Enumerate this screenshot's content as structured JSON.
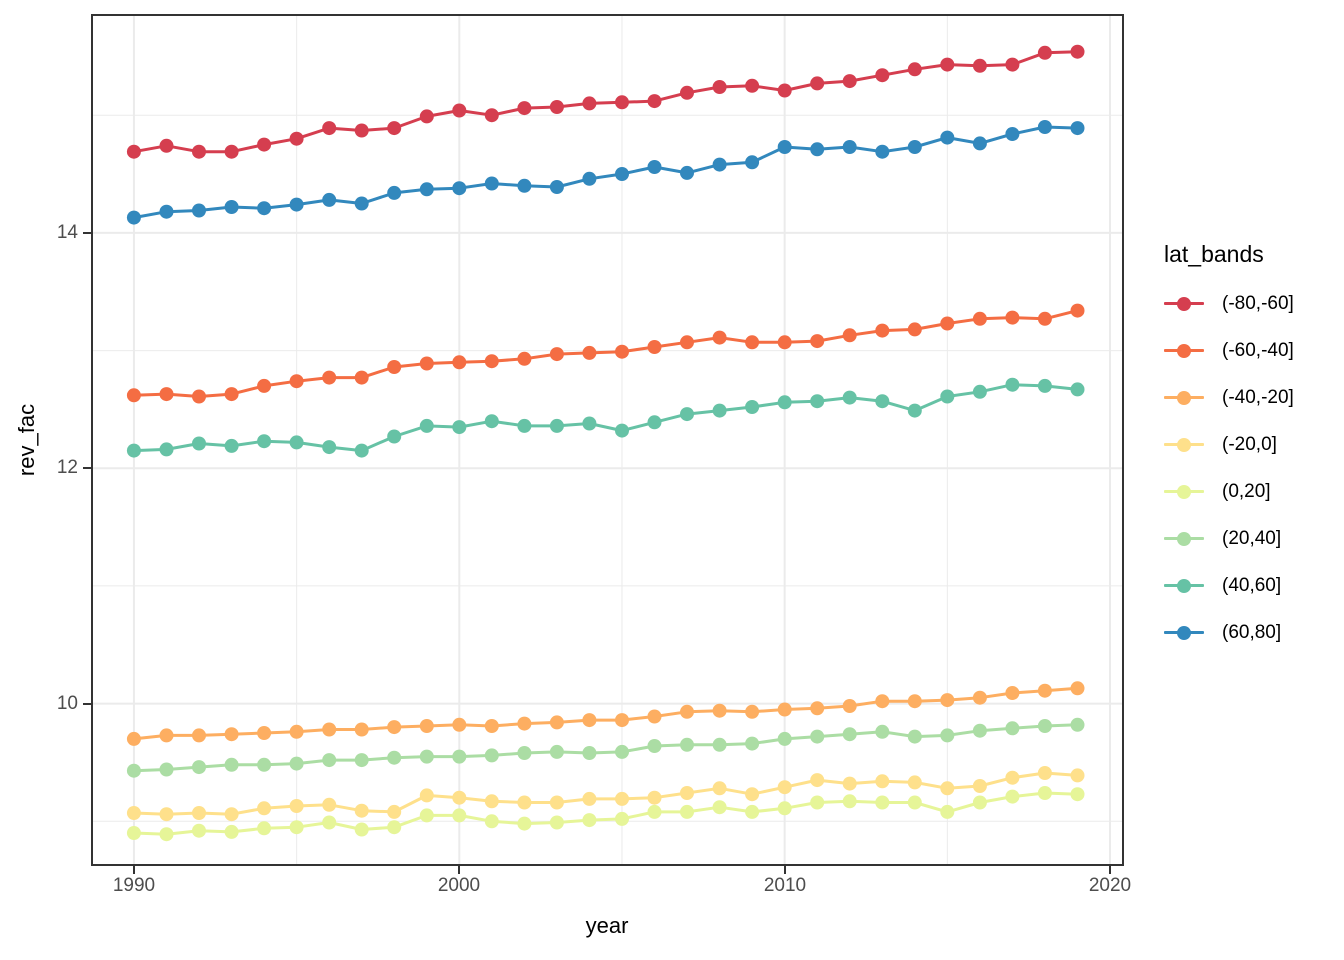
{
  "colors": {
    "background": "#ffffff",
    "panel_border": "#333333",
    "gridline": "#ebebeb",
    "tick": "#333333",
    "tick_label": "#4d4d4d",
    "axis_title": "#000000",
    "legend_text": "#000000"
  },
  "chart_data": {
    "type": "line",
    "marker": "point",
    "title": "",
    "xlabel": "year",
    "ylabel": "rev_fac",
    "legend_title": "lat_bands",
    "legend_position": "right",
    "grid": true,
    "x_range": [
      1988.68,
      2020.43
    ],
    "y_range": [
      8.62,
      15.86
    ],
    "x_ticks": [
      1990,
      2000,
      2010,
      2020
    ],
    "x_tick_labels": [
      "1990",
      "2000",
      "2010",
      "2020"
    ],
    "x_minor_ticks": [
      1995,
      2005,
      2015
    ],
    "y_ticks": [
      14,
      12,
      10
    ],
    "y_tick_labels": [
      "14",
      "12",
      "10"
    ],
    "y_minor_ticks": [
      15,
      13,
      11,
      9
    ],
    "x": [
      1990,
      1991,
      1992,
      1993,
      1994,
      1995,
      1996,
      1997,
      1998,
      1999,
      2000,
      2001,
      2002,
      2003,
      2004,
      2005,
      2006,
      2007,
      2008,
      2009,
      2010,
      2011,
      2012,
      2013,
      2014,
      2015,
      2016,
      2017,
      2018,
      2019
    ],
    "series": [
      {
        "name": "(-80,-60]",
        "color": "#d53e4f",
        "values": [
          14.69,
          14.74,
          14.69,
          14.69,
          14.75,
          14.8,
          14.89,
          14.87,
          14.89,
          14.99,
          15.04,
          15.0,
          15.06,
          15.07,
          15.1,
          15.11,
          15.12,
          15.19,
          15.24,
          15.25,
          15.21,
          15.27,
          15.29,
          15.34,
          15.39,
          15.43,
          15.42,
          15.43,
          15.53,
          15.54
        ]
      },
      {
        "name": "(-60,-40]",
        "color": "#f46d43",
        "values": [
          12.62,
          12.63,
          12.61,
          12.63,
          12.7,
          12.74,
          12.77,
          12.77,
          12.86,
          12.89,
          12.9,
          12.91,
          12.93,
          12.97,
          12.98,
          12.99,
          13.03,
          13.07,
          13.11,
          13.07,
          13.07,
          13.08,
          13.13,
          13.17,
          13.18,
          13.23,
          13.27,
          13.28,
          13.27,
          13.34
        ]
      },
      {
        "name": "(-40,-20]",
        "color": "#fdae61",
        "values": [
          9.7,
          9.73,
          9.73,
          9.74,
          9.75,
          9.76,
          9.78,
          9.78,
          9.8,
          9.81,
          9.82,
          9.81,
          9.83,
          9.84,
          9.86,
          9.86,
          9.89,
          9.93,
          9.94,
          9.93,
          9.95,
          9.96,
          9.98,
          10.02,
          10.02,
          10.03,
          10.05,
          10.09,
          10.11,
          10.13
        ]
      },
      {
        "name": "(-20,0]",
        "color": "#fee08b",
        "values": [
          9.07,
          9.06,
          9.07,
          9.06,
          9.11,
          9.13,
          9.14,
          9.09,
          9.08,
          9.22,
          9.2,
          9.17,
          9.16,
          9.16,
          9.19,
          9.19,
          9.2,
          9.24,
          9.28,
          9.23,
          9.29,
          9.35,
          9.32,
          9.34,
          9.33,
          9.28,
          9.3,
          9.37,
          9.41,
          9.39
        ]
      },
      {
        "name": "(0,20]",
        "color": "#e6f598",
        "values": [
          8.9,
          8.89,
          8.92,
          8.91,
          8.94,
          8.95,
          8.99,
          8.93,
          8.95,
          9.05,
          9.05,
          9.0,
          8.98,
          8.99,
          9.01,
          9.02,
          9.08,
          9.08,
          9.12,
          9.08,
          9.11,
          9.16,
          9.17,
          9.16,
          9.16,
          9.08,
          9.16,
          9.21,
          9.24,
          9.23
        ]
      },
      {
        "name": "(20,40]",
        "color": "#abdda4",
        "values": [
          9.43,
          9.44,
          9.46,
          9.48,
          9.48,
          9.49,
          9.52,
          9.52,
          9.54,
          9.55,
          9.55,
          9.56,
          9.58,
          9.59,
          9.58,
          9.59,
          9.64,
          9.65,
          9.65,
          9.66,
          9.7,
          9.72,
          9.74,
          9.76,
          9.72,
          9.73,
          9.77,
          9.79,
          9.81,
          9.82
        ]
      },
      {
        "name": "(40,60]",
        "color": "#66c2a5",
        "values": [
          12.15,
          12.16,
          12.21,
          12.19,
          12.23,
          12.22,
          12.18,
          12.15,
          12.27,
          12.36,
          12.35,
          12.4,
          12.36,
          12.36,
          12.38,
          12.32,
          12.39,
          12.46,
          12.49,
          12.52,
          12.56,
          12.57,
          12.6,
          12.57,
          12.49,
          12.61,
          12.65,
          12.71,
          12.7,
          12.67
        ]
      },
      {
        "name": "(60,80]",
        "color": "#3288bd",
        "values": [
          14.13,
          14.18,
          14.19,
          14.22,
          14.21,
          14.24,
          14.28,
          14.25,
          14.34,
          14.37,
          14.38,
          14.42,
          14.4,
          14.39,
          14.46,
          14.5,
          14.56,
          14.51,
          14.58,
          14.6,
          14.73,
          14.71,
          14.73,
          14.69,
          14.73,
          14.81,
          14.76,
          14.84,
          14.9,
          14.89
        ]
      }
    ]
  }
}
